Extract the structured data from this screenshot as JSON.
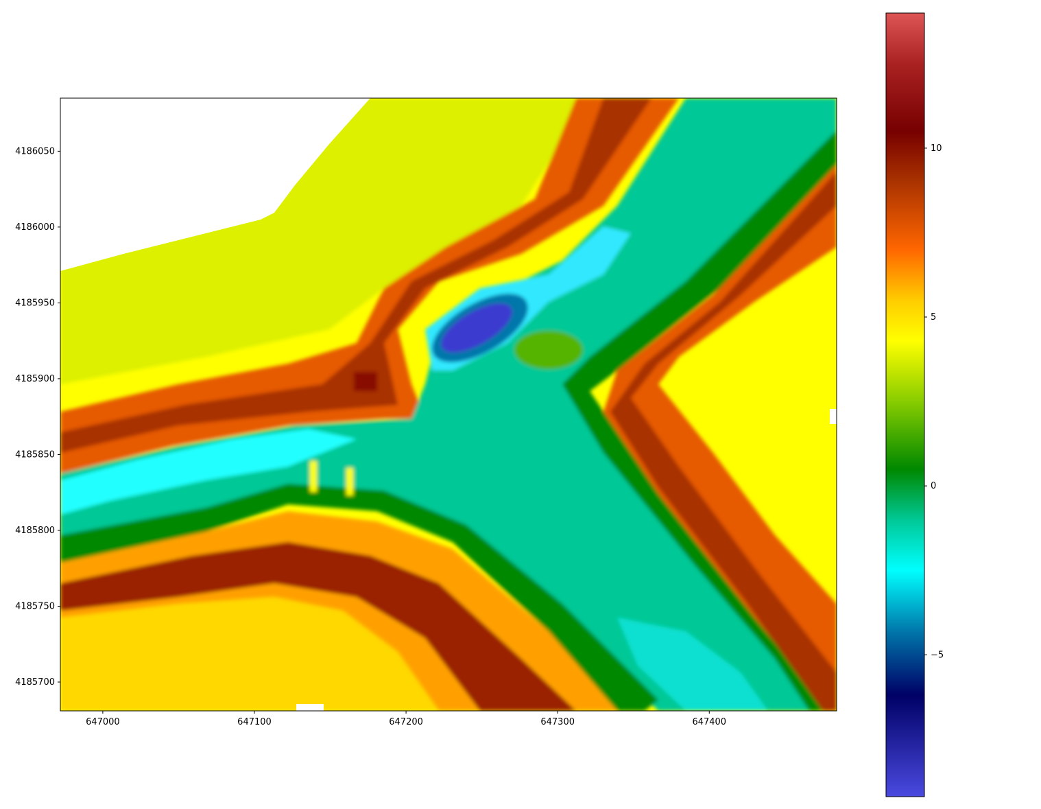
{
  "chart_data": {
    "type": "heatmap",
    "title": "",
    "xlabel": "",
    "ylabel": "",
    "xlim": [
      646972,
      647484
    ],
    "ylim": [
      4185681,
      4186085
    ],
    "x_ticks": [
      {
        "value": 647000,
        "label": "647000"
      },
      {
        "value": 647100,
        "label": "647100"
      },
      {
        "value": 647200,
        "label": "647200"
      },
      {
        "value": 647300,
        "label": "647300"
      },
      {
        "value": 647400,
        "label": "647400"
      }
    ],
    "y_ticks": [
      {
        "value": 4186050,
        "label": "4186050"
      },
      {
        "value": 4186000,
        "label": "4186000"
      },
      {
        "value": 4185950,
        "label": "4185950"
      },
      {
        "value": 4185900,
        "label": "4185900"
      },
      {
        "value": 4185850,
        "label": "4185850"
      },
      {
        "value": 4185800,
        "label": "4185800"
      },
      {
        "value": 4185750,
        "label": "4185750"
      },
      {
        "value": 4185700,
        "label": "4185700"
      }
    ],
    "colorbar": {
      "vmin": -9.2,
      "vmax": 14,
      "ticks": [
        {
          "value": 10,
          "label": "10"
        },
        {
          "value": 5,
          "label": "5"
        },
        {
          "value": 0,
          "label": "0"
        },
        {
          "value": -5,
          "label": "−5"
        }
      ],
      "stops": [
        {
          "value": -9.2,
          "color": "#4a4ae0"
        },
        {
          "value": -6.2,
          "color": "#000066"
        },
        {
          "value": -4.3,
          "color": "#0077aa"
        },
        {
          "value": -2.5,
          "color": "#00ffff"
        },
        {
          "value": -1.0,
          "color": "#00c896"
        },
        {
          "value": 0.5,
          "color": "#008800"
        },
        {
          "value": 2.5,
          "color": "#88cc00"
        },
        {
          "value": 4.3,
          "color": "#ffff00"
        },
        {
          "value": 5.5,
          "color": "#ffcc00"
        },
        {
          "value": 7.0,
          "color": "#ff6600"
        },
        {
          "value": 9.0,
          "color": "#aa3300"
        },
        {
          "value": 10.5,
          "color": "#770000"
        },
        {
          "value": 12.5,
          "color": "#aa2222"
        },
        {
          "value": 14.0,
          "color": "#dd5555"
        }
      ]
    },
    "no_data_color": "#ffffff"
  }
}
